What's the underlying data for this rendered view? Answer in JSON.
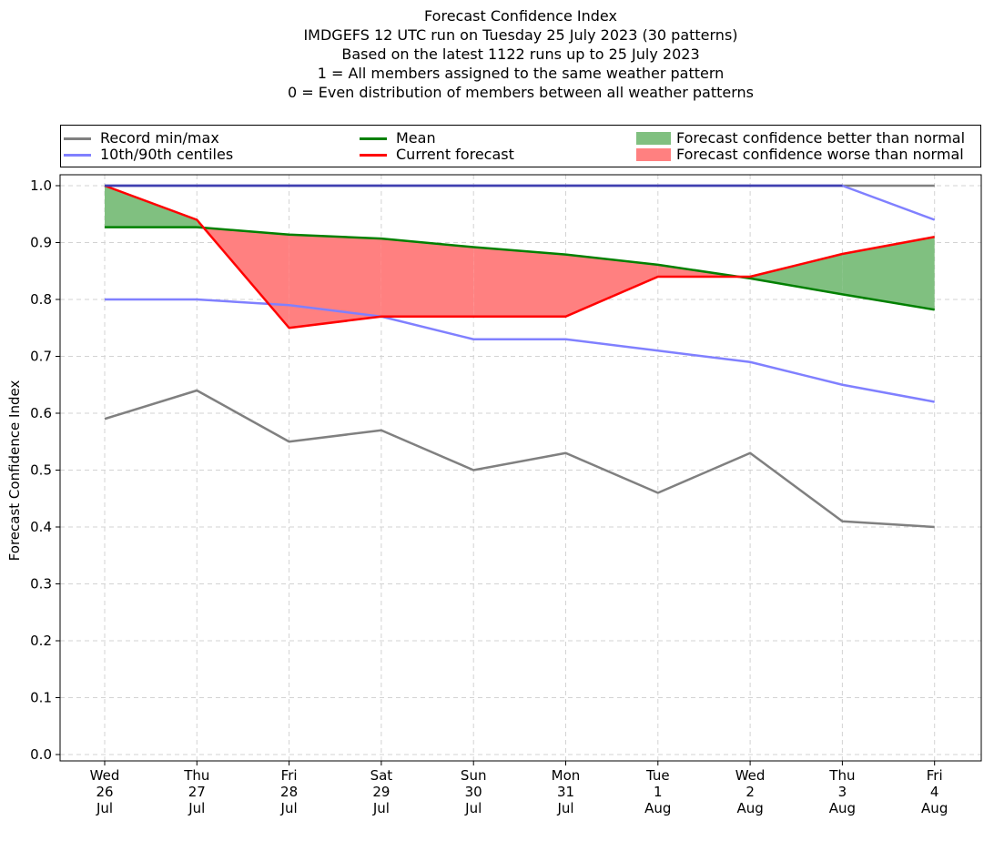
{
  "chart_data": {
    "type": "line",
    "title_lines": [
      "Forecast Confidence Index",
      "IMDGEFS 12 UTC run on Tuesday 25 July 2023 (30 patterns)",
      "Based on the latest 1122 runs up to 25 July 2023",
      "1 = All members assigned to the same weather pattern",
      "0 = Even distribution of members between all weather patterns"
    ],
    "ylabel": "Forecast Confidence Index",
    "xlabel": "",
    "ylim": [
      0,
      1
    ],
    "yticks": [
      "0.0",
      "0.1",
      "0.2",
      "0.3",
      "0.4",
      "0.5",
      "0.6",
      "0.7",
      "0.8",
      "0.9",
      "1.0"
    ],
    "grid": true,
    "categories": [
      [
        "Wed",
        "26",
        "Jul"
      ],
      [
        "Thu",
        "27",
        "Jul"
      ],
      [
        "Fri",
        "28",
        "Jul"
      ],
      [
        "Sat",
        "29",
        "Jul"
      ],
      [
        "Sun",
        "30",
        "Jul"
      ],
      [
        "Mon",
        "31",
        "Jul"
      ],
      [
        "Tue",
        "1",
        "Aug"
      ],
      [
        "Wed",
        "2",
        "Aug"
      ],
      [
        "Thu",
        "3",
        "Aug"
      ],
      [
        "Fri",
        "4",
        "Aug"
      ]
    ],
    "series": [
      {
        "key": "record_min",
        "values": [
          0.59,
          0.64,
          0.55,
          0.57,
          0.5,
          0.53,
          0.46,
          0.53,
          0.41,
          0.4
        ],
        "color": "#808080"
      },
      {
        "key": "record_max",
        "values": [
          1.0,
          1.0,
          1.0,
          1.0,
          1.0,
          1.0,
          1.0,
          1.0,
          1.0,
          1.0
        ],
        "color": "#808080"
      },
      {
        "key": "centile_10",
        "values": [
          0.8,
          0.8,
          0.79,
          0.77,
          0.73,
          0.73,
          0.71,
          0.69,
          0.65,
          0.62
        ],
        "color": "#8080ff"
      },
      {
        "key": "centile_90",
        "values": [
          1.0,
          1.0,
          1.0,
          1.0,
          1.0,
          1.0,
          1.0,
          1.0,
          1.0,
          0.94
        ],
        "color": "#8080ff"
      },
      {
        "key": "mean",
        "values": [
          0.927,
          0.927,
          0.914,
          0.907,
          0.892,
          0.879,
          0.861,
          0.837,
          0.809,
          0.782
        ],
        "color": "#008000"
      },
      {
        "key": "current",
        "values": [
          1.0,
          0.94,
          0.75,
          0.77,
          0.77,
          0.77,
          0.84,
          0.84,
          0.88,
          0.91
        ],
        "color": "#ff0000"
      }
    ],
    "fill_better_color": "#80c080",
    "fill_worse_color": "#ff8080",
    "legend": {
      "placement": "top",
      "entries": [
        {
          "label": "Record min/max",
          "kind": "line",
          "color": "#808080"
        },
        {
          "label": "10th/90th centiles",
          "kind": "line",
          "color": "#8080ff"
        },
        {
          "label": "Mean",
          "kind": "line",
          "color": "#008000"
        },
        {
          "label": "Current forecast",
          "kind": "line",
          "color": "#ff0000"
        },
        {
          "label": "Forecast confidence better than normal",
          "kind": "patch",
          "color": "#80c080"
        },
        {
          "label": "Forecast confidence worse than normal",
          "kind": "patch",
          "color": "#ff8080"
        }
      ]
    }
  }
}
